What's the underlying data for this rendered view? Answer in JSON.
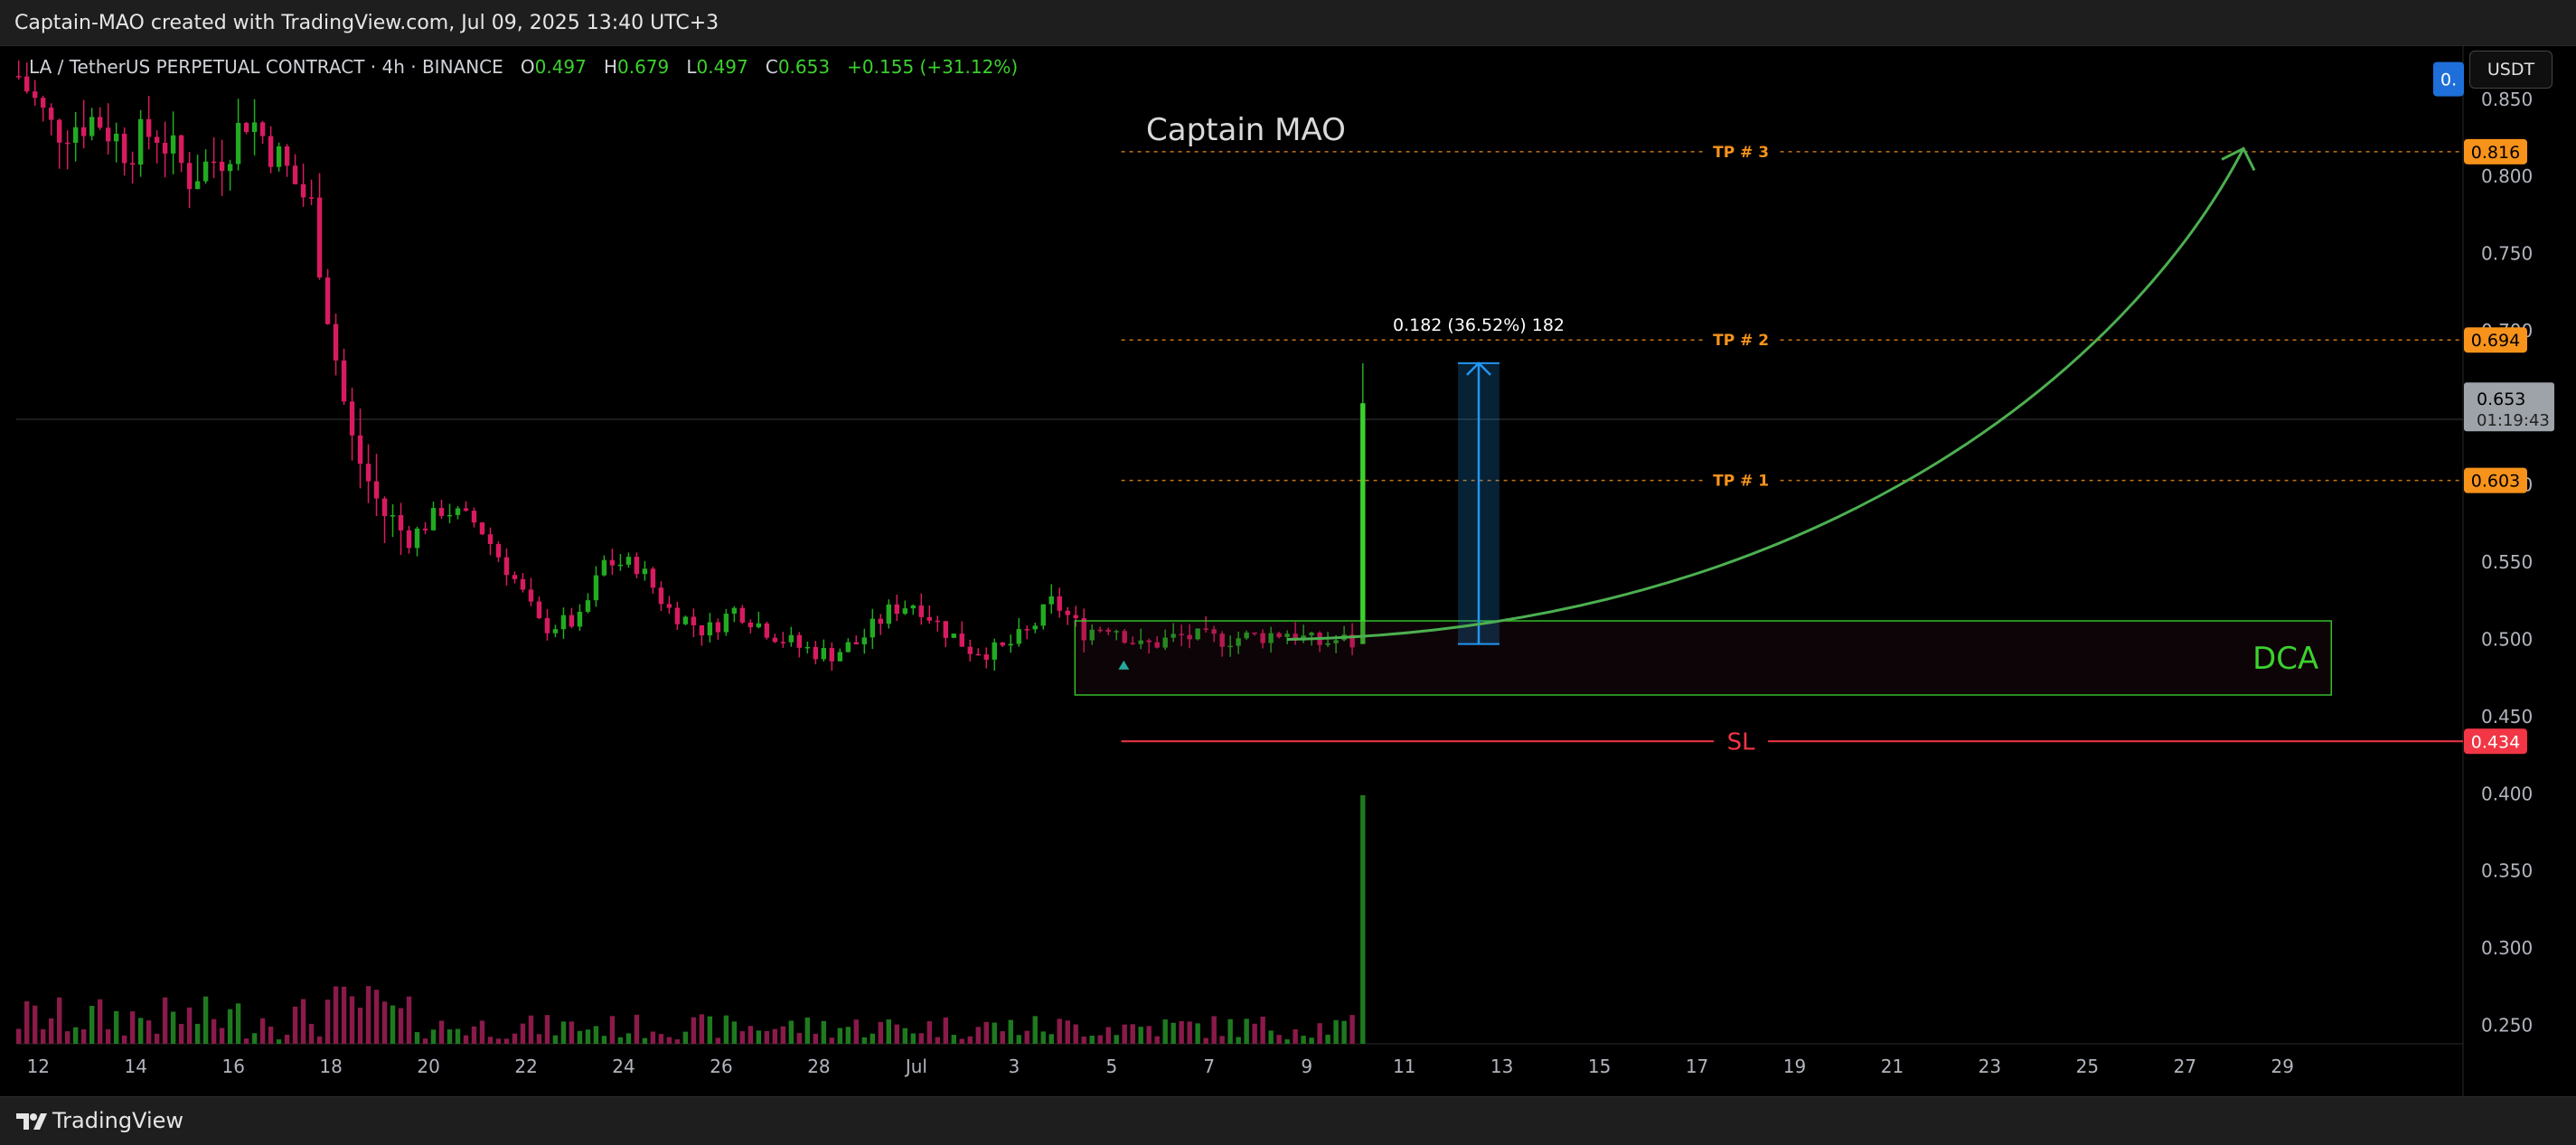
{
  "header": {
    "text": "Captain-MAO created with TradingView.com, Jul 09, 2025 13:40 UTC+3"
  },
  "legend": {
    "symbol": "LA / TetherUS PERPETUAL CONTRACT · 4h · BINANCE",
    "open_label": "O",
    "open": "0.497",
    "high_label": "H",
    "high": "0.679",
    "low_label": "L",
    "low": "0.497",
    "close_label": "C",
    "close": "0.653",
    "change": "+0.155 (+31.12%)"
  },
  "currency_button": "USDT",
  "watermark": "Captain MAO",
  "footer": {
    "brand": "TradingView"
  },
  "colors": {
    "up": "#22ab22",
    "down": "#d81b60",
    "tp": "#f7931a",
    "sl": "#f23645",
    "dca": "#3cd12e",
    "measure": "#2196f3",
    "arrow": "#4caf50"
  },
  "chart_data": {
    "type": "candlestick",
    "title": "LA / TetherUS PERPETUAL CONTRACT · 4h · BINANCE",
    "interval": "4h",
    "y_axis": {
      "ticks": [
        "0.850",
        "0.800",
        "0.750",
        "0.700",
        "0.650",
        "0.600",
        "0.550",
        "0.500",
        "0.450",
        "0.400",
        "0.350",
        "0.300",
        "0.250"
      ],
      "range": [
        0.238,
        0.885
      ]
    },
    "x_axis": {
      "ticks": [
        "12",
        "14",
        "16",
        "18",
        "20",
        "22",
        "24",
        "26",
        "28",
        "Jul",
        "3",
        "5",
        "7",
        "9",
        "11",
        "13",
        "15",
        "17",
        "19",
        "21",
        "23",
        "25",
        "27",
        "29"
      ],
      "start_day": 11.55,
      "end_day": 61.7
    },
    "ohlc_keypoints": [
      [
        11.6,
        0.865
      ],
      [
        12.3,
        0.83
      ],
      [
        13.2,
        0.838
      ],
      [
        13.8,
        0.818
      ],
      [
        14.4,
        0.83
      ],
      [
        15.1,
        0.8
      ],
      [
        15.8,
        0.815
      ],
      [
        16.3,
        0.84
      ],
      [
        17.0,
        0.808
      ],
      [
        17.6,
        0.78
      ],
      [
        18.0,
        0.7
      ],
      [
        18.4,
        0.63
      ],
      [
        19.0,
        0.585
      ],
      [
        19.6,
        0.565
      ],
      [
        20.3,
        0.585
      ],
      [
        21.0,
        0.575
      ],
      [
        21.8,
        0.537
      ],
      [
        22.3,
        0.508
      ],
      [
        23.1,
        0.512
      ],
      [
        23.6,
        0.55
      ],
      [
        24.3,
        0.548
      ],
      [
        24.9,
        0.52
      ],
      [
        25.7,
        0.505
      ],
      [
        26.3,
        0.52
      ],
      [
        27.0,
        0.505
      ],
      [
        27.6,
        0.495
      ],
      [
        28.2,
        0.49
      ],
      [
        28.8,
        0.498
      ],
      [
        29.5,
        0.52
      ],
      [
        30.0,
        0.524
      ],
      [
        30.5,
        0.508
      ],
      [
        31.1,
        0.494
      ],
      [
        31.7,
        0.492
      ],
      [
        32.3,
        0.505
      ],
      [
        32.8,
        0.525
      ],
      [
        33.4,
        0.505
      ],
      [
        34.0,
        0.51
      ],
      [
        34.6,
        0.495
      ],
      [
        35.4,
        0.502
      ],
      [
        36.1,
        0.5
      ],
      [
        37.0,
        0.502
      ],
      [
        37.6,
        0.505
      ],
      [
        38.2,
        0.497
      ],
      [
        38.7,
        0.5
      ],
      [
        39.0,
        0.497
      ]
    ],
    "last_candle": {
      "open": 0.497,
      "high": 0.679,
      "low": 0.497,
      "close": 0.653
    },
    "volume": {
      "range_max": 100
    },
    "price_labels": [
      {
        "value": 0.816,
        "text": "0.816",
        "color": "#f7931a"
      },
      {
        "value": 0.694,
        "text": "0.694",
        "color": "#f7931a"
      },
      {
        "value": 0.603,
        "text": "0.603",
        "color": "#f7931a"
      },
      {
        "value": 0.434,
        "text": "0.434",
        "color": "#f23645"
      }
    ],
    "current_price": {
      "value": 0.653,
      "text": "0.653",
      "countdown": "01:19:43"
    },
    "partial_label": {
      "value": 0.863,
      "text": "0."
    },
    "annotations": {
      "tp_lines": [
        {
          "label": "TP # 3",
          "value": 0.816
        },
        {
          "label": "TP # 2",
          "value": 0.694
        },
        {
          "label": "TP # 1",
          "value": 0.603
        }
      ],
      "sl_line": {
        "label": "SL",
        "value": 0.434
      },
      "dca_box": {
        "label": "DCA",
        "from_day": 33.25,
        "to_day": 59.0,
        "low": 0.464,
        "high": 0.512
      },
      "measure": {
        "label": "0.182 (36.52%) 182",
        "from_day": 41.1,
        "to_day": 41.95,
        "low": 0.497,
        "high": 0.679
      },
      "projection_arrow": {
        "from_day": 37.6,
        "from_value": 0.5,
        "to_day": 57.2,
        "to_value": 0.818
      }
    }
  }
}
